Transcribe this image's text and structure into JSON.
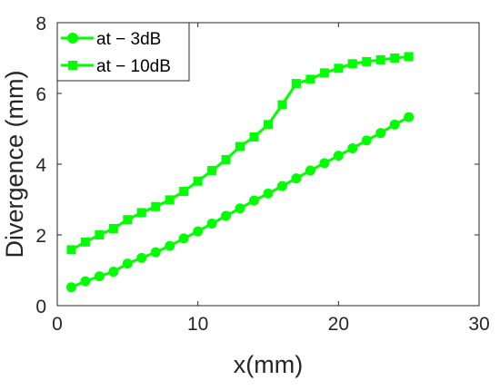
{
  "chart_data": {
    "type": "line",
    "xlabel": "x(mm)",
    "ylabel": "Divergence (mm)",
    "xlim": [
      0,
      30
    ],
    "ylim": [
      0,
      8
    ],
    "xticks": [
      0,
      10,
      20,
      30
    ],
    "yticks": [
      0,
      2,
      4,
      6,
      8
    ],
    "grid": false,
    "legend_position": "top-left",
    "line_color": "#00ff00",
    "series": [
      {
        "name": "at − 3dB",
        "marker": "circle",
        "x": [
          1,
          2,
          3,
          4,
          5,
          6,
          7,
          8,
          9,
          10,
          11,
          12,
          13,
          14,
          15,
          16,
          17,
          18,
          19,
          20,
          21,
          22,
          23,
          24,
          25
        ],
        "y": [
          0.52,
          0.69,
          0.83,
          0.96,
          1.19,
          1.35,
          1.51,
          1.69,
          1.9,
          2.1,
          2.32,
          2.54,
          2.75,
          2.97,
          3.17,
          3.38,
          3.6,
          3.82,
          4.03,
          4.24,
          4.45,
          4.67,
          4.88,
          5.12,
          5.33
        ]
      },
      {
        "name": "at − 10dB",
        "marker": "square",
        "x": [
          1,
          2,
          3,
          4,
          5,
          6,
          7,
          8,
          9,
          10,
          11,
          12,
          13,
          14,
          15,
          16,
          17,
          18,
          19,
          20,
          21,
          22,
          23,
          24,
          25
        ],
        "y": [
          1.58,
          1.8,
          2.0,
          2.18,
          2.43,
          2.63,
          2.8,
          2.99,
          3.23,
          3.52,
          3.82,
          4.13,
          4.5,
          4.77,
          5.12,
          5.68,
          6.28,
          6.4,
          6.58,
          6.71,
          6.84,
          6.9,
          6.95,
          7.0,
          7.04
        ]
      }
    ]
  }
}
